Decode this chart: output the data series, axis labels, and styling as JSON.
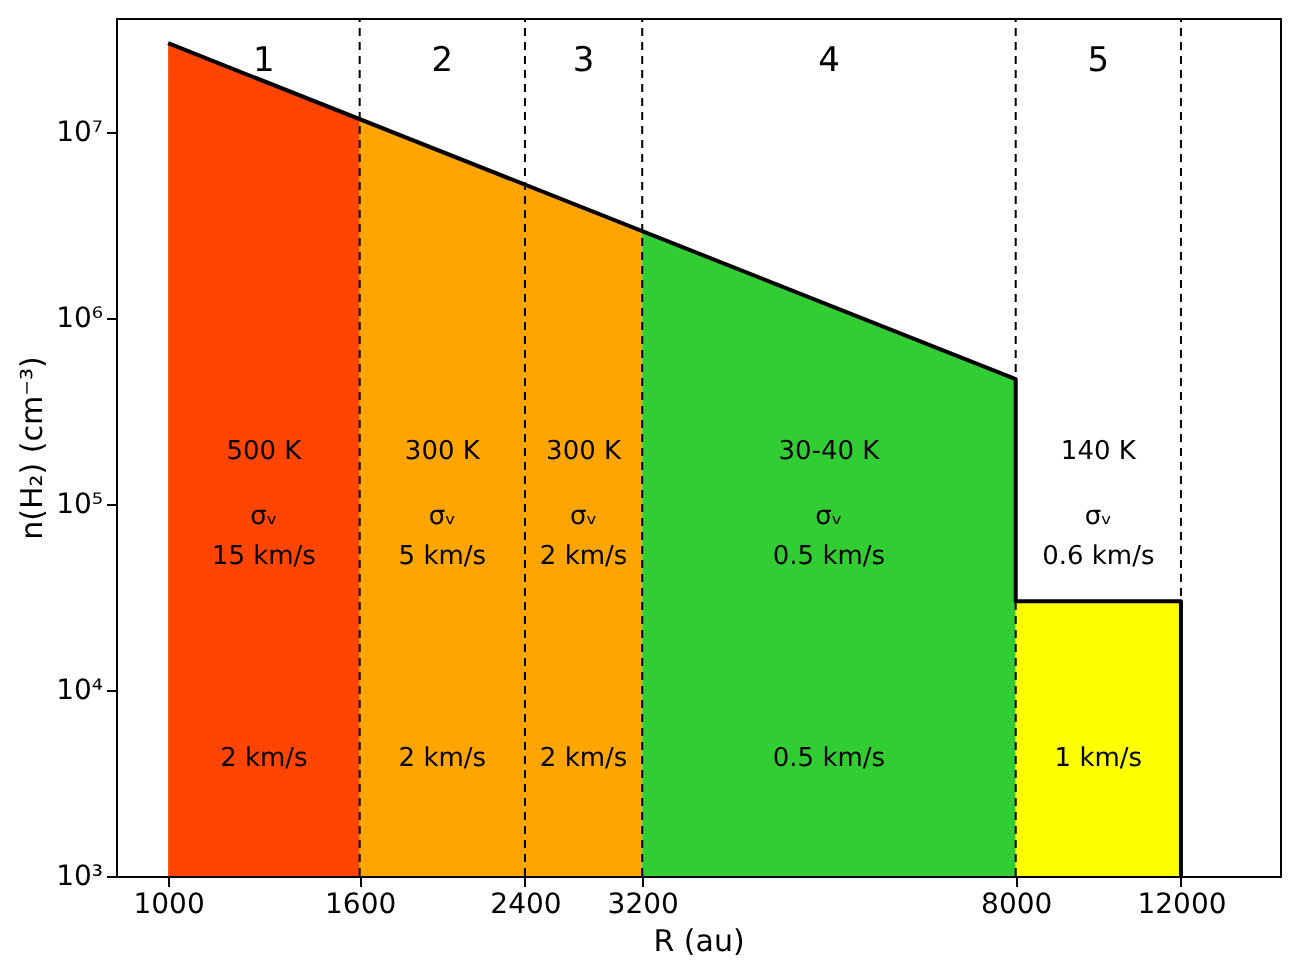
{
  "chart_data": {
    "type": "area",
    "xlabel": "R (au)",
    "ylabel": "n(H₂) (cm⁻³)",
    "log": "xy",
    "grid": false,
    "xlim": [
      880,
      15300
    ],
    "ylim": [
      1000,
      41000000
    ],
    "xticks": [
      1000,
      1600,
      2400,
      3200,
      8000,
      12000
    ],
    "yticks": [
      {
        "value": 1000,
        "label": "10³"
      },
      {
        "value": 10000,
        "label": "10⁴"
      },
      {
        "value": 100000,
        "label": "10⁵"
      },
      {
        "value": 1000000,
        "label": "10⁶"
      },
      {
        "value": 10000000,
        "label": "10⁷"
      }
    ],
    "series": [
      {
        "color": "#ff4500",
        "x": [
          1000,
          1600
        ],
        "values": [
          30000000,
          11700000
        ]
      },
      {
        "color": "#ffa500",
        "x": [
          1600,
          2400
        ],
        "values": [
          11700000,
          5200000
        ]
      },
      {
        "color": "#ffa500",
        "x": [
          2400,
          3200
        ],
        "values": [
          5200000,
          2930000
        ]
      },
      {
        "color": "#32cd32",
        "x": [
          3200,
          8000
        ],
        "values": [
          2930000,
          469000
        ]
      },
      {
        "color": "#ffff00",
        "x": [
          8000,
          12000
        ],
        "values": [
          30000,
          30000
        ]
      },
      {
        "type": "line",
        "line_style": "solid",
        "color": "#000000",
        "x": [
          1000,
          8000,
          8000,
          12000,
          12000
        ],
        "values": [
          30000000,
          469000,
          30000,
          30000,
          1000
        ]
      }
    ],
    "ref_lines": [
      {
        "axis": "x",
        "value": 1600,
        "color": "#000000",
        "line_style": "dashed"
      },
      {
        "axis": "x",
        "value": 2400,
        "color": "#000000",
        "line_style": "dashed"
      },
      {
        "axis": "x",
        "value": 3200,
        "color": "#000000",
        "line_style": "dashed"
      },
      {
        "axis": "x",
        "value": 8000,
        "color": "#000000",
        "line_style": "dashed"
      },
      {
        "axis": "x",
        "value": 12000,
        "color": "#000000",
        "line_style": "dashed"
      }
    ],
    "annotations": [
      "1",
      "2",
      "3",
      "4",
      "5",
      "500 K",
      "300 K",
      "300 K",
      "30-40 K",
      "140 K",
      "σᵥ",
      "σᵥ",
      "σᵥ",
      "σᵥ",
      "σᵥ",
      "15 km/s",
      "5 km/s",
      "2 km/s",
      "0.5 km/s",
      "0.6 km/s",
      "2 km/s",
      "2 km/s",
      "2 km/s",
      "0.5 km/s",
      "1 km/s"
    ]
  }
}
